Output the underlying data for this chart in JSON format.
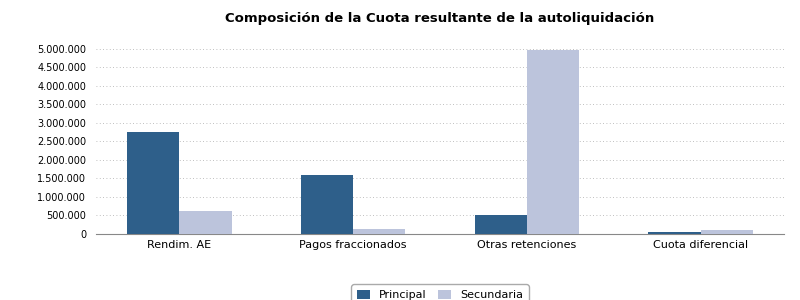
{
  "title": "Composición de la Cuota resultante de la autoliquidación",
  "categories": [
    "Rendim. AE",
    "Pagos fraccionados",
    "Otras retenciones",
    "Cuota diferencial"
  ],
  "principal": [
    2750000,
    1600000,
    500000,
    50000
  ],
  "secundaria": [
    620000,
    130000,
    4950000,
    120000
  ],
  "color_principal": "#2E5F8A",
  "color_secundaria": "#BCC4DC",
  "legend_labels": [
    "Principal",
    "Secundaria"
  ],
  "ylim": [
    0,
    5500000
  ],
  "yticks": [
    0,
    500000,
    1000000,
    1500000,
    2000000,
    2500000,
    3000000,
    3500000,
    4000000,
    4500000,
    5000000
  ],
  "bar_width": 0.3,
  "bg_color": "#FFFFFF",
  "grid_color": "#AAAAAA",
  "title_fontsize": 9.5,
  "tick_fontsize": 7,
  "xlabel_fontsize": 8
}
